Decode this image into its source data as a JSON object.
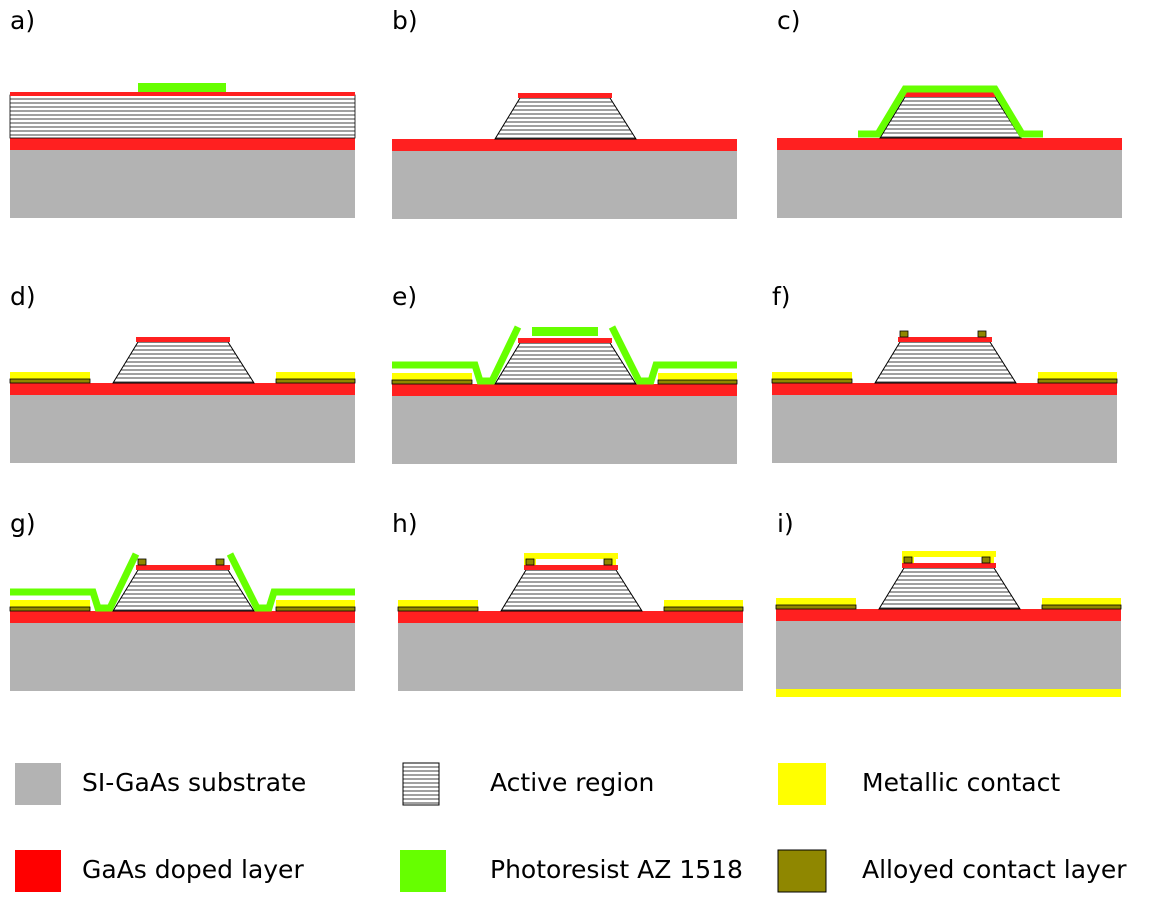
{
  "panel_labels": [
    "a)",
    "b)",
    "c)",
    "d)",
    "e)",
    "f)",
    "g)",
    "h)",
    "i)"
  ],
  "legend": [
    "SI-GaAs substrate",
    "Active region",
    "Metallic contact",
    "GaAs doped layer",
    "Photoresist AZ 1518",
    "Alloyed contact layer"
  ]
}
